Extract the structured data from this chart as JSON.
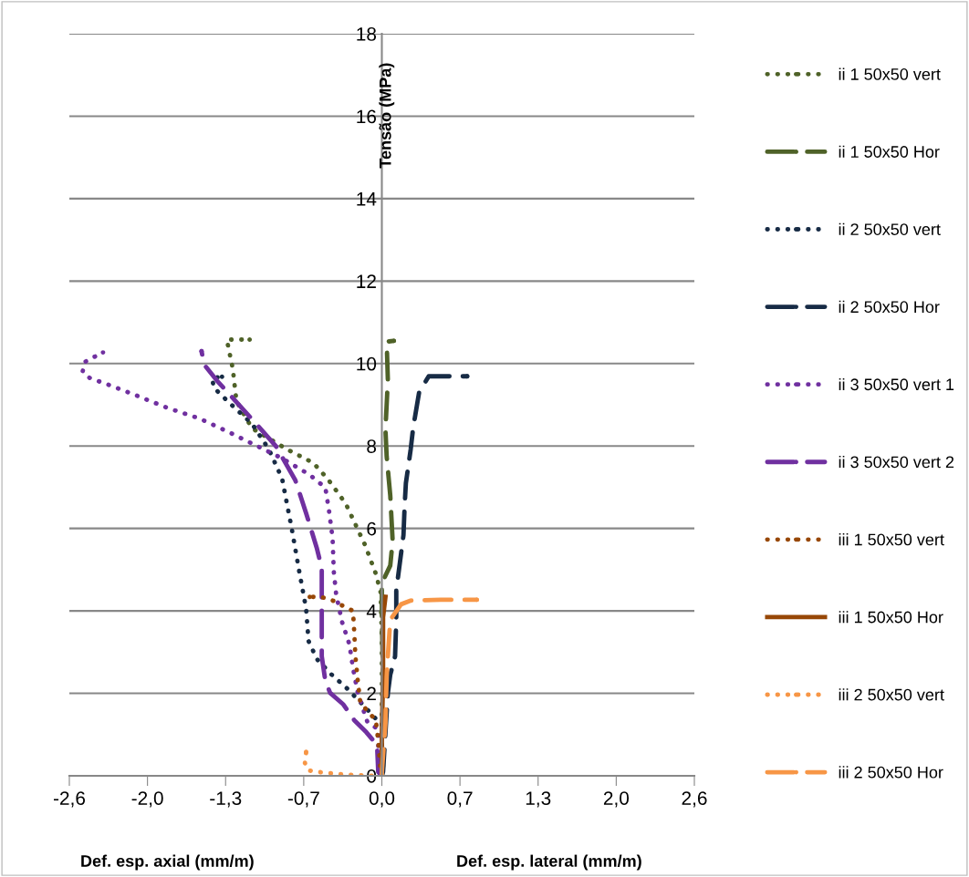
{
  "chart_data": {
    "type": "line",
    "ylabel": "Tensão (MPa)",
    "xlabel": "Def. esp. axial (mm/m)",
    "annotations": [
      "Def. esp. lateral (mm/m)"
    ],
    "xlim": [
      -2.6,
      2.6
    ],
    "xticks": [
      {
        "value": -2.6,
        "label": "-2,6"
      },
      {
        "value": -1.95,
        "label": "-2,0"
      },
      {
        "value": -1.3,
        "label": "-1,3"
      },
      {
        "value": -0.65,
        "label": "-0,7"
      },
      {
        "value": 0,
        "label": "0,0"
      },
      {
        "value": 0.65,
        "label": "0,7"
      },
      {
        "value": 1.3,
        "label": "1,3"
      },
      {
        "value": 1.95,
        "label": "2,0"
      },
      {
        "value": 2.6,
        "label": "2,6"
      }
    ],
    "ylim": [
      0,
      18
    ],
    "yticks": [
      0,
      2,
      4,
      6,
      8,
      10,
      12,
      14,
      16,
      18
    ],
    "grid": "y",
    "legend": "right",
    "series": [
      {
        "name": "ii 1 50x50 vert",
        "color": "#4f6228",
        "line_style": "dotted",
        "x": [
          0,
          0,
          0,
          -0.01,
          -0.05,
          -0.14,
          -0.3,
          -0.45,
          -0.57,
          -0.79,
          -1.08,
          -1.21,
          -1.24,
          -1.29,
          -1.1
        ],
        "values": [
          0,
          1.1,
          3.3,
          4.45,
          4.9,
          5.6,
          6.6,
          7.2,
          7.59,
          7.92,
          8.43,
          9.09,
          9.87,
          10.58,
          10.58
        ]
      },
      {
        "name": "ii 1 50x50 Hor",
        "color": "#4f6228",
        "line_style": "dashed",
        "x": [
          0,
          0.01,
          0.01,
          0,
          0,
          0.07,
          0.09,
          0.07,
          0.04,
          0.03,
          0.05,
          0.04,
          0.1
        ],
        "values": [
          0,
          0.24,
          2.4,
          3.85,
          4.67,
          5.1,
          5.7,
          6.8,
          7.75,
          8.4,
          9.6,
          10.53,
          10.55
        ]
      },
      {
        "name": "ii 2 50x50 vert",
        "color": "#172b45",
        "line_style": "dotted",
        "x": [
          0,
          0,
          -0.04,
          -0.16,
          -0.29,
          -0.42,
          -0.54,
          -0.61,
          -0.63,
          -0.69,
          -0.75,
          -0.83,
          -0.94,
          -1.08,
          -1.27,
          -1.4,
          -1.41,
          -1.33
        ],
        "values": [
          0,
          1.28,
          1.35,
          1.73,
          2.12,
          2.46,
          2.83,
          3.27,
          4.05,
          5.0,
          6.0,
          7.21,
          7.92,
          8.54,
          9.05,
          9.42,
          9.65,
          9.68
        ]
      },
      {
        "name": "ii 2 50x50 Hor",
        "color": "#172b45",
        "line_style": "dashed",
        "x": [
          0,
          0.01,
          0.05,
          0.07,
          0.11,
          0.12,
          0.12,
          0.15,
          0.18,
          0.19,
          0.2,
          0.24,
          0.26,
          0.31,
          0.39,
          0.71
        ],
        "values": [
          0,
          0.1,
          2.0,
          2.45,
          2.9,
          3.78,
          4.5,
          5.17,
          5.84,
          6.58,
          7.1,
          7.92,
          8.43,
          9.3,
          9.69,
          9.69
        ]
      },
      {
        "name": "ii 3 50x50 vert 1",
        "color": "#7030a0",
        "line_style": "dotted",
        "x": [
          0,
          -0.03,
          -0.03,
          -0.12,
          -0.2,
          -0.24,
          -0.27,
          -0.33,
          -0.38,
          -0.4,
          -0.41,
          -0.44,
          -0.47,
          -0.6,
          -0.83,
          -1.06,
          -1.29,
          -1.52,
          -1.78,
          -2.02,
          -2.26,
          -2.43,
          -2.49,
          -2.47,
          -2.4,
          -2.32
        ],
        "values": [
          0,
          0.18,
          1.13,
          1.3,
          2.01,
          2.61,
          3.19,
          3.72,
          4.4,
          4.96,
          5.77,
          6.44,
          6.99,
          7.3,
          7.7,
          8.03,
          8.36,
          8.67,
          8.92,
          9.2,
          9.47,
          9.65,
          9.8,
          10.04,
          10.15,
          10.27
        ]
      },
      {
        "name": "ii 3 50x50 vert 2",
        "color": "#7030a0",
        "line_style": "dashed",
        "x": [
          0,
          -0.03,
          -0.04,
          -0.13,
          -0.23,
          -0.32,
          -0.43,
          -0.47,
          -0.5,
          -0.5,
          -0.54,
          -0.63,
          -0.72,
          -0.88,
          -1.08,
          -1.37,
          -1.48,
          -1.5
        ],
        "values": [
          0,
          0.09,
          0.75,
          1.06,
          1.35,
          1.73,
          2.01,
          2.3,
          2.9,
          5.04,
          5.51,
          6.37,
          7.17,
          7.99,
          8.65,
          9.58,
          9.98,
          10.3
        ]
      },
      {
        "name": "iii 1 50x50 vert",
        "color": "#974706",
        "line_style": "dotted",
        "x": [
          0,
          -0.01,
          -0.03,
          -0.05,
          -0.12,
          -0.18,
          -0.2,
          -0.22,
          -0.23,
          -0.24,
          -0.35,
          -0.42,
          -0.51,
          -0.6
        ],
        "values": [
          0,
          0.09,
          0.84,
          1.35,
          1.57,
          1.79,
          2.3,
          2.9,
          3.5,
          4.0,
          4.16,
          4.27,
          4.34,
          4.34
        ]
      },
      {
        "name": "iii 1 50x50 Hor",
        "color": "#974706",
        "line_style": "solid",
        "x": [
          0,
          0,
          0.01,
          0.01,
          0.03
        ],
        "values": [
          0,
          1.0,
          2.4,
          3.85,
          4.34
        ]
      },
      {
        "name": "iii 2 50x50 vert",
        "color": "#f79646",
        "line_style": "dotted",
        "x": [
          0,
          -0.09,
          -0.35,
          -0.52,
          -0.61,
          -0.64,
          -0.63
        ],
        "values": [
          0,
          0,
          0.04,
          0.09,
          0.13,
          0.31,
          0.58
        ]
      },
      {
        "name": "iii 2 50x50 Hor",
        "color": "#f79646",
        "line_style": "dashed",
        "x": [
          0,
          0,
          0.03,
          0.04,
          0.05,
          0.07,
          0.16,
          0.24,
          0.49,
          0.79
        ],
        "values": [
          0,
          0.09,
          1.28,
          2.4,
          2.9,
          3.78,
          4.16,
          4.25,
          4.27,
          4.27
        ]
      }
    ]
  }
}
